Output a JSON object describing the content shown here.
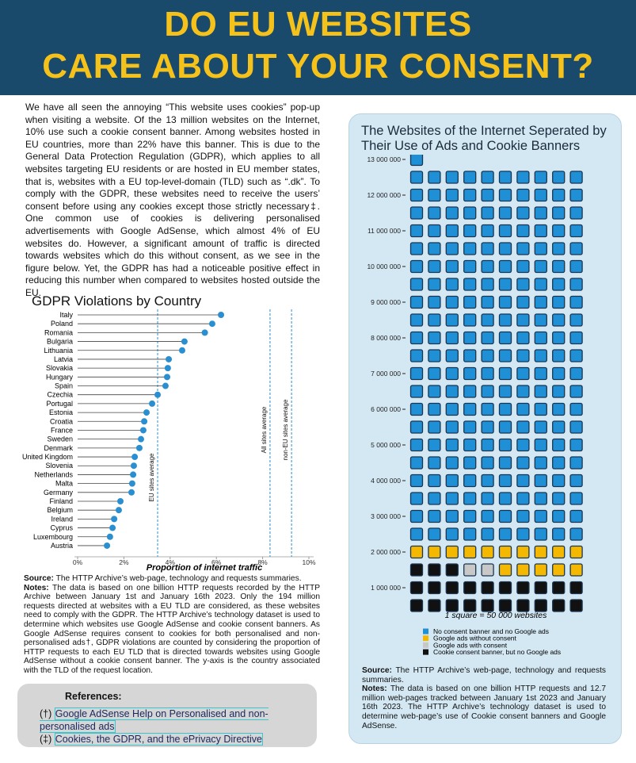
{
  "header": {
    "title_lines": [
      "DO EU WEBSITES",
      "CARE ABOUT YOUR CONSENT?"
    ]
  },
  "intro": {
    "paragraph": "We have all seen the annoying “This website uses cookies” pop-up when visiting a website. Of the 13 million websites on the Internet, 10% use such a cookie consent banner. Among websites hosted in EU countries, more than 22% have this banner. This is due to the General Data Protection Regulation (GDPR), which applies to all websites targeting EU residents or are hosted in EU member states, that is, websites with a EU top-level-domain (TLD) such as “.dk”. To comply with the GDPR, these websites need to receive the users’ consent before using any cookies except those strictly necessary‡. One common use of cookies is delivering personalised advertisements with Google AdSense, which almost 4% of EU websites do. However, a significant amount of traffic is directed towards websites which do this without consent, as we see in the figure below. Yet, the GDPR has had a noticeable positive effect in reducing this number when compared to websites hosted outside the EU."
  },
  "chart_data": [
    {
      "type": "lollipop",
      "title": "GDPR Violations by Country",
      "x_label": "Proportion of internet traffic",
      "categories": [
        "Italy",
        "Poland",
        "Romania",
        "Bulgaria",
        "Lithuania",
        "Latvia",
        "Slovakia",
        "Hungary",
        "Spain",
        "Czechia",
        "Portugal",
        "Estonia",
        "Croatia",
        "France",
        "Sweden",
        "Denmark",
        "United Kingdom",
        "Slovenia",
        "Netherlands",
        "Malta",
        "Germany",
        "Finland",
        "Belgium",
        "Ireland",
        "Cyprus",
        "Luxembourg",
        "Austria"
      ],
      "values": [
        6.2,
        5.82,
        5.5,
        4.62,
        4.52,
        3.94,
        3.9,
        3.87,
        3.8,
        3.46,
        3.22,
        2.98,
        2.88,
        2.84,
        2.74,
        2.67,
        2.47,
        2.43,
        2.4,
        2.36,
        2.33,
        1.85,
        1.78,
        1.58,
        1.51,
        1.4,
        1.27
      ],
      "color": "#2a8fd0",
      "xlim": [
        0,
        10
      ],
      "xticks": [
        {
          "value": 0,
          "label": "0%"
        },
        {
          "value": 2,
          "label": "2%"
        },
        {
          "value": 4,
          "label": "4%"
        },
        {
          "value": 6,
          "label": "6%"
        },
        {
          "value": 8,
          "label": "8%"
        },
        {
          "value": 10,
          "label": "10%"
        }
      ],
      "reference_lines": [
        {
          "name": "EU sites average",
          "value": 3.46
        },
        {
          "name": "All sites average",
          "value": 8.32
        },
        {
          "name": "non-EU sites average",
          "value": 9.25
        }
      ],
      "reference_color": "#2a8fd0"
    },
    {
      "type": "waffle",
      "title": "The Websites of the Internet Seperated by Their Use of Ads and Cookie Banners",
      "unit": 50000,
      "unit_label": "1 square = 50 000 websites",
      "series": [
        {
          "name": "No consent banner and no Google ads",
          "color": "#1f8fd6",
          "values": [
            10550000
          ]
        },
        {
          "name": "Google ads without consent",
          "color": "#f5b800",
          "values": [
            750000
          ]
        },
        {
          "name": "Google ads with consent",
          "color": "#c8c8c8",
          "values": [
            100000
          ]
        },
        {
          "name": "Cookie consent banner, but no Google ads",
          "color": "#111111",
          "values": [
            1150000
          ]
        }
      ],
      "ylim": [
        0,
        13000000
      ],
      "yticks": [
        {
          "value": 1000000,
          "label": "1 000 000"
        },
        {
          "value": 2000000,
          "label": "2 000 000"
        },
        {
          "value": 3000000,
          "label": "3 000 000"
        },
        {
          "value": 4000000,
          "label": "4 000 000"
        },
        {
          "value": 5000000,
          "label": "5 000 000"
        },
        {
          "value": 6000000,
          "label": "6 000 000"
        },
        {
          "value": 7000000,
          "label": "7 000 000"
        },
        {
          "value": 8000000,
          "label": "8 000 000"
        },
        {
          "value": 9000000,
          "label": "9 000 000"
        },
        {
          "value": 10000000,
          "label": "10 000 000"
        },
        {
          "value": 11000000,
          "label": "11 000 000"
        },
        {
          "value": 12000000,
          "label": "12 000 000"
        },
        {
          "value": 13000000,
          "label": "13 000 000"
        }
      ]
    }
  ],
  "notes_left": {
    "source_label": "Source:",
    "source": "The HTTP Archive’s web-page, technology and requests summaries.",
    "notes_label": "Notes:",
    "notes": "The data is based on one billion HTTP requests recorded by the HTTP Archive between January 1st and January 16th 2023. Only the 194 million requests directed at websites with a EU TLD are considered, as these websites need to comply with the GDPR. The HTTP Archive’s technology dataset is used to determine which websites use Google AdSense and cookie consent banners. As Google AdSense requires consent to cookies for both personalised and non-personalised ads†, GDPR violations are counted by considering the proportion of HTTP requests to each EU TLD that is directed towards websites using Google AdSense without a cookie consent banner. The y-axis is the country associated with the TLD of the request location."
  },
  "references": {
    "title": "References:",
    "items": [
      {
        "mark": "(†)",
        "text": "Google AdSense Help on Personalised and non-personalised ads"
      },
      {
        "mark": "(‡)",
        "text": "Cookies, the GDPR, and the ePrivacy Directive"
      }
    ]
  },
  "notes_right": {
    "source_label": "Source:",
    "source": "The HTTP Archive’s web-page, technology and requests summaries.",
    "notes_label": "Notes:",
    "notes": "The data is based on one billion HTTP requests and 12.7 million web-pages tracked between January 1st 2023 and January 16th 2023. The HTTP Archive’s technology dataset is used to determine web-page’s use of Cookie consent banners and Google AdSense."
  }
}
